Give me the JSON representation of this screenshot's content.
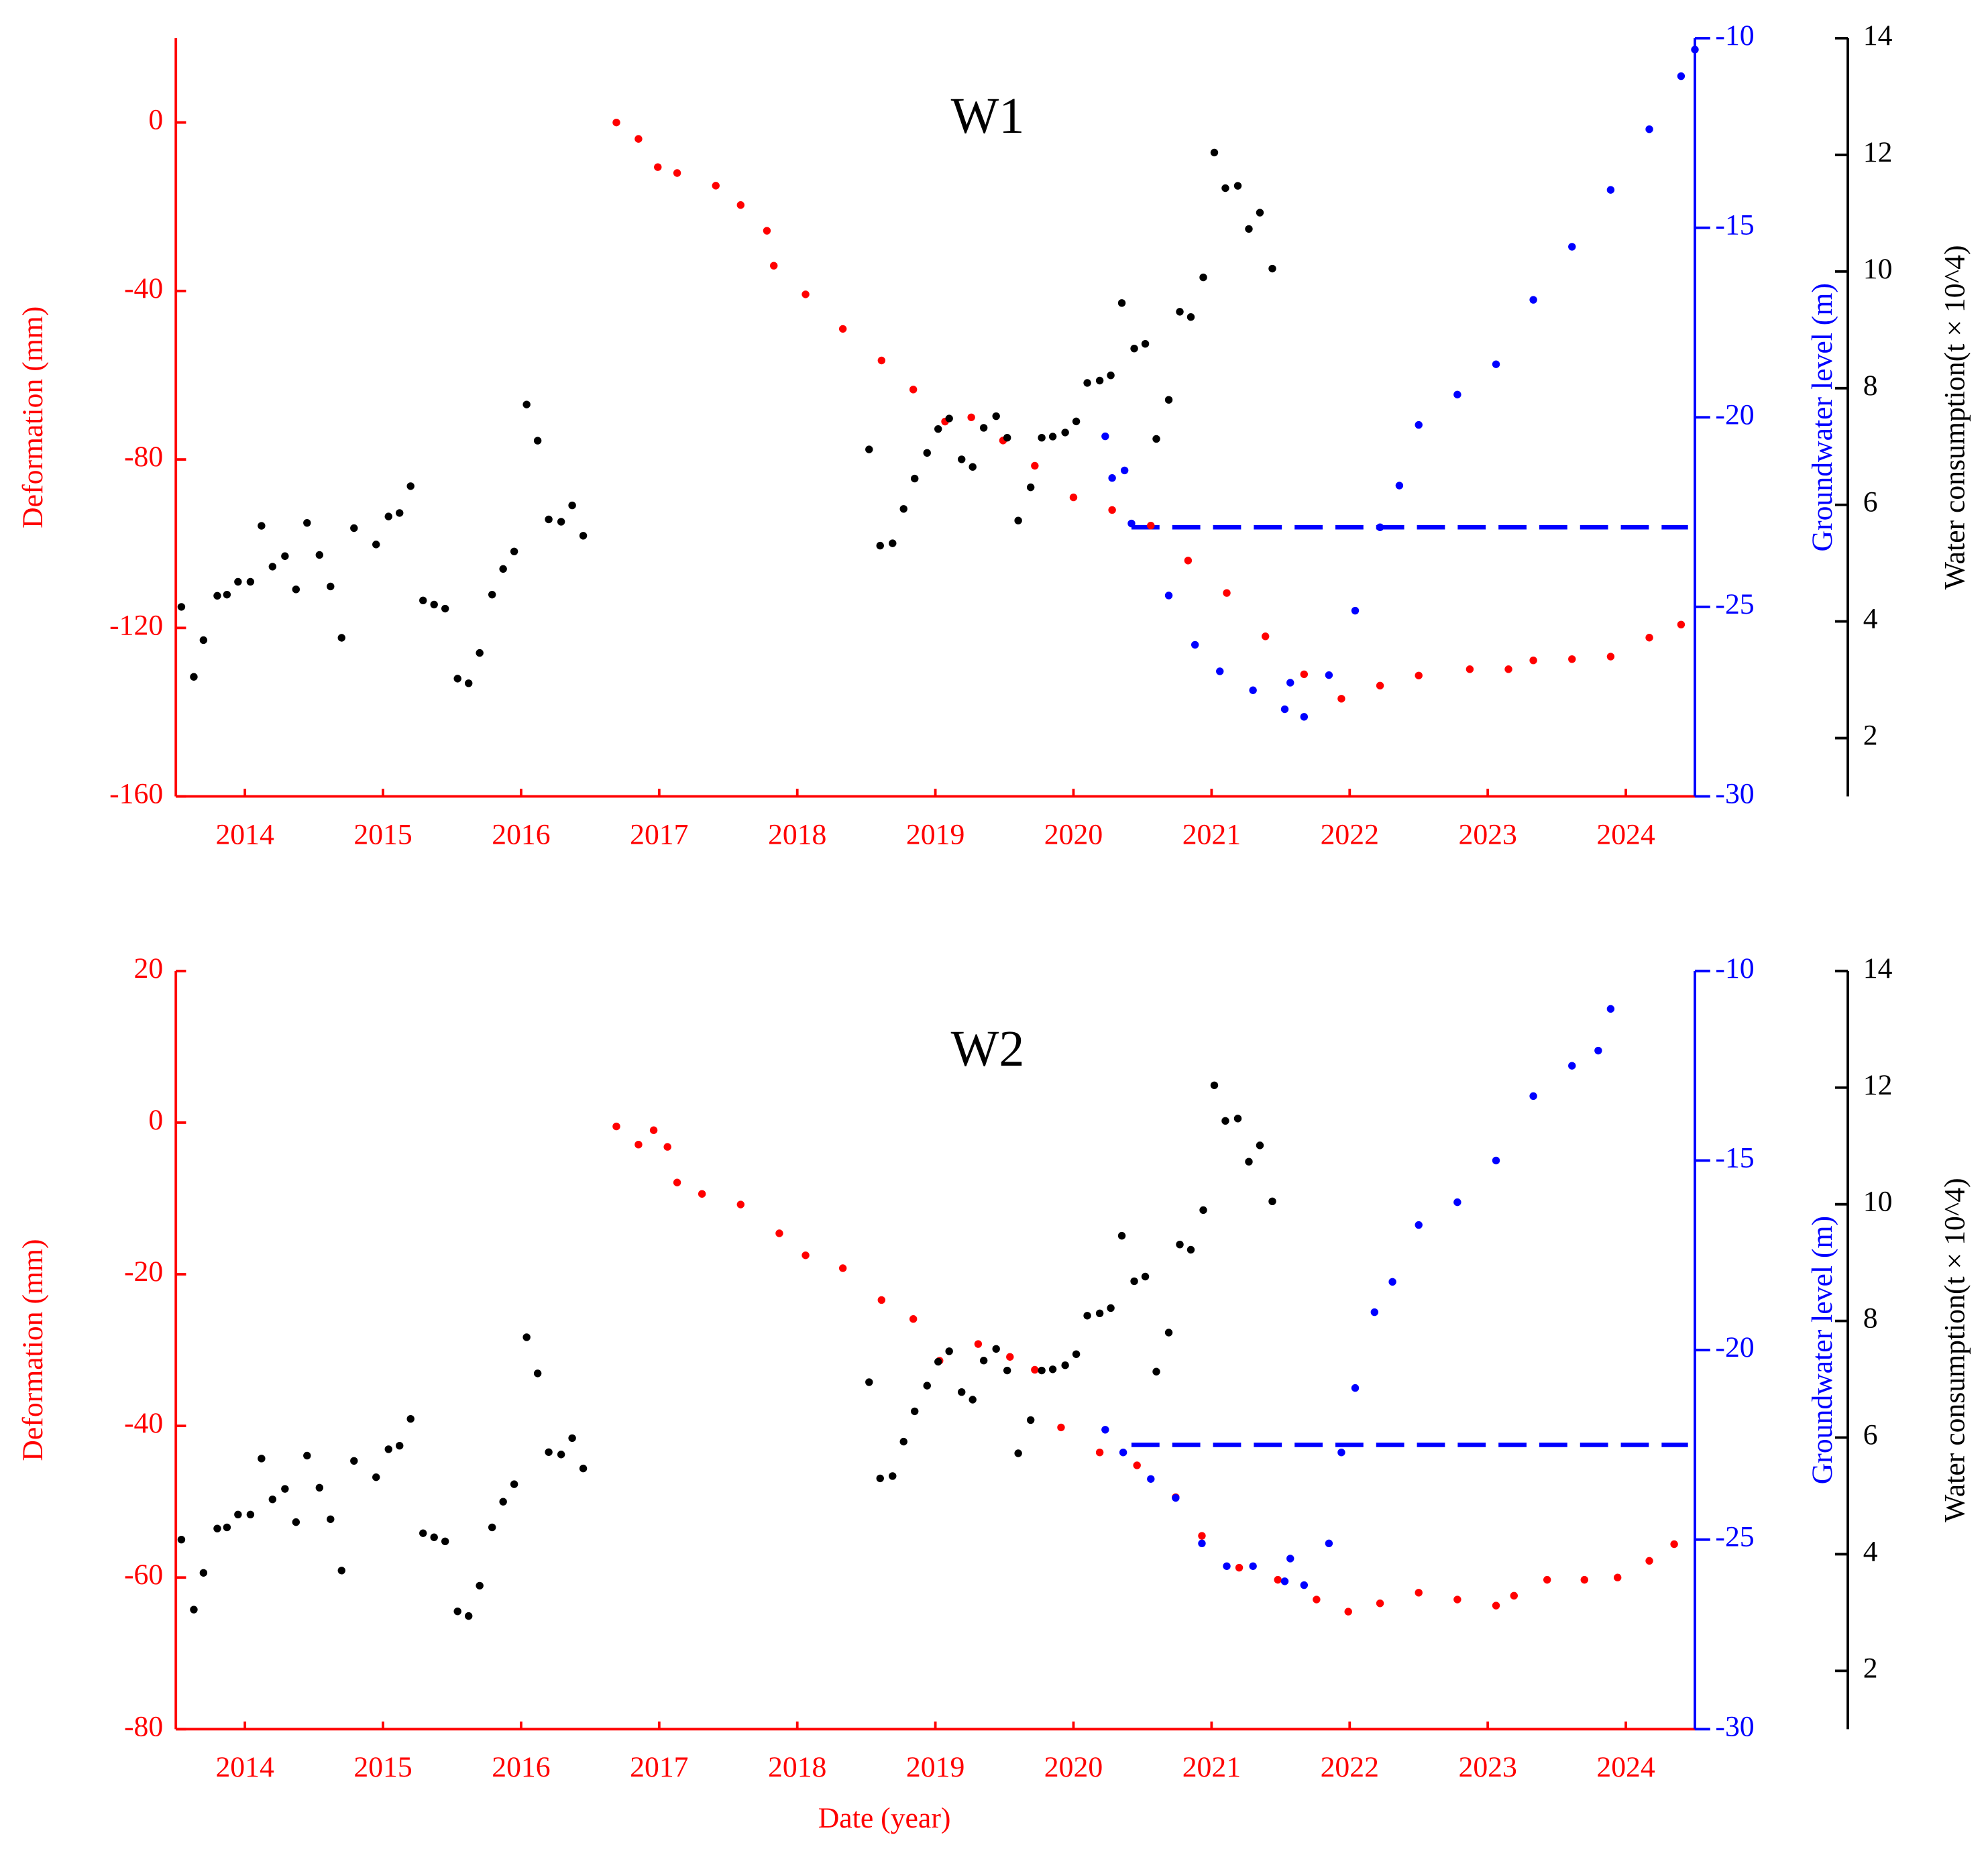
{
  "chart_data": [
    {
      "type": "scatter",
      "title": "W1",
      "ylabel": "Deformation (mm)",
      "y2label": "Groundwater level (m)",
      "y3label": "Water consumption(t × 10^4)",
      "xlim": [
        2014,
        2025
      ],
      "xticks": [
        {
          "value": 2014.5,
          "label": "2014"
        },
        {
          "value": 2015.5,
          "label": "2015"
        },
        {
          "value": 2016.5,
          "label": "2016"
        },
        {
          "value": 2017.5,
          "label": "2017"
        },
        {
          "value": 2018.5,
          "label": "2018"
        },
        {
          "value": 2019.5,
          "label": "2019"
        },
        {
          "value": 2020.5,
          "label": "2020"
        },
        {
          "value": 2021.5,
          "label": "2021"
        },
        {
          "value": 2022.5,
          "label": "2022"
        },
        {
          "value": 2023.5,
          "label": "2023"
        },
        {
          "value": 2024.5,
          "label": "2024"
        }
      ],
      "ylim": [
        -160,
        20
      ],
      "yticks": [
        -160,
        -120,
        -80,
        -40,
        0
      ],
      "y2lim": [
        -30,
        -10
      ],
      "y2ticks": [
        -30,
        -25,
        -20,
        -15,
        -10
      ],
      "y3lim": [
        1,
        14
      ],
      "y3ticks": [
        2,
        4,
        6,
        8,
        10,
        12,
        14
      ],
      "series": [
        {
          "color": "#ff0000",
          "axis": "y",
          "x": [
            2017.19,
            2017.35,
            2017.49,
            2017.63,
            2017.91,
            2018.09,
            2018.28,
            2018.33,
            2018.56,
            2018.83,
            2019.11,
            2019.34,
            2019.57,
            2019.76,
            2019.99,
            2020.22,
            2020.5,
            2020.78,
            2021.06,
            2021.33,
            2021.61,
            2021.89,
            2022.17,
            2022.44,
            2022.72,
            2023.0,
            2023.37,
            2023.65,
            2023.83,
            2024.11,
            2024.39,
            2024.67,
            2024.9
          ],
          "values": [
            0,
            -3.9,
            -10.6,
            -12,
            -15,
            -19.6,
            -25.7,
            -34,
            -40.8,
            -49,
            -56.5,
            -63.4,
            -71,
            -70,
            -75.5,
            -81.5,
            -89,
            -92,
            -95.7,
            -104,
            -111.7,
            -122,
            -131,
            -136.8,
            -133.7,
            -131.3,
            -129.8,
            -129.8,
            -127.7,
            -127.4,
            -126.8,
            -122.3,
            -119.2
          ]
        },
        {
          "color": "#0000ff",
          "axis": "y2",
          "x": [
            2020.73,
            2020.78,
            2020.87,
            2020.92,
            2021.19,
            2021.38,
            2021.56,
            2021.8,
            2022.03,
            2022.07,
            2022.17,
            2022.35,
            2022.54,
            2022.72,
            2022.86,
            2023.0,
            2023.28,
            2023.56,
            2023.83,
            2024.11,
            2024.39,
            2024.67,
            2024.9,
            2025.0
          ],
          "values": [
            -20.5,
            -21.6,
            -21.4,
            -22.8,
            -24.7,
            -26.0,
            -26.7,
            -27.2,
            -27.7,
            -27.0,
            -27.9,
            -26.8,
            -25.1,
            -22.9,
            -21.8,
            -20.2,
            -19.4,
            -18.6,
            -16.9,
            -15.5,
            -14.0,
            -12.4,
            -11.0,
            -10.3
          ]
        },
        {
          "color": "#000000",
          "axis": "y3",
          "x": [
            2014.04,
            2014.13,
            2014.2,
            2014.3,
            2014.37,
            2014.45,
            2014.54,
            2014.62,
            2014.7,
            2014.79,
            2014.87,
            2014.95,
            2015.04,
            2015.12,
            2015.2,
            2015.29,
            2015.45,
            2015.54,
            2015.62,
            2015.7,
            2015.79,
            2015.87,
            2015.95,
            2016.04,
            2016.12,
            2016.2,
            2016.29,
            2016.37,
            2016.45,
            2016.54,
            2016.62,
            2016.7,
            2016.79,
            2016.87,
            2016.95,
            2019.02,
            2019.1,
            2019.19,
            2019.27,
            2019.35,
            2019.44,
            2019.52,
            2019.6,
            2019.69,
            2019.77,
            2019.85,
            2019.94,
            2020.02,
            2020.1,
            2020.19,
            2020.27,
            2020.35,
            2020.44,
            2020.52,
            2020.6,
            2020.69,
            2020.77,
            2020.85,
            2020.94,
            2021.02,
            2021.1,
            2021.19,
            2021.27,
            2021.35,
            2021.44,
            2021.52,
            2021.6,
            2021.69,
            2021.77,
            2021.85,
            2021.94
          ],
          "values": [
            4.25,
            3.05,
            3.68,
            4.44,
            4.46,
            4.68,
            4.68,
            5.64,
            4.94,
            5.12,
            4.55,
            5.69,
            5.14,
            4.6,
            3.72,
            5.6,
            5.32,
            5.8,
            5.86,
            6.32,
            4.36,
            4.29,
            4.22,
            3.02,
            2.94,
            3.46,
            4.46,
            4.9,
            5.2,
            7.72,
            7.1,
            5.75,
            5.71,
            5.99,
            5.47,
            6.95,
            5.3,
            5.34,
            5.93,
            6.45,
            6.89,
            7.3,
            7.48,
            6.78,
            6.65,
            7.32,
            7.52,
            7.15,
            5.73,
            6.3,
            7.15,
            7.17,
            7.24,
            7.43,
            8.09,
            8.13,
            8.22,
            9.46,
            8.68,
            8.76,
            7.13,
            7.8,
            9.31,
            9.22,
            9.9,
            12.04,
            11.43,
            11.47,
            10.73,
            11.01,
            10.05
          ]
        }
      ],
      "reference_line": {
        "axis": "y2",
        "color": "#0000ff",
        "dashed": true,
        "y": -22.9,
        "x": [
          2020.92,
          2024.95
        ]
      }
    },
    {
      "type": "scatter",
      "title": "W2",
      "xlabel": "Date (year)",
      "ylabel": "Deformation (mm)",
      "y2label": "Groundwater level (m)",
      "y3label": "Water consumption(t × 10^4)",
      "xlim": [
        2014,
        2025
      ],
      "xticks": [
        {
          "value": 2014.5,
          "label": "2014"
        },
        {
          "value": 2015.5,
          "label": "2015"
        },
        {
          "value": 2016.5,
          "label": "2016"
        },
        {
          "value": 2017.5,
          "label": "2017"
        },
        {
          "value": 2018.5,
          "label": "2018"
        },
        {
          "value": 2019.5,
          "label": "2019"
        },
        {
          "value": 2020.5,
          "label": "2020"
        },
        {
          "value": 2021.5,
          "label": "2021"
        },
        {
          "value": 2022.5,
          "label": "2022"
        },
        {
          "value": 2023.5,
          "label": "2023"
        },
        {
          "value": 2024.5,
          "label": "2024"
        }
      ],
      "ylim": [
        -80,
        20
      ],
      "yticks": [
        -80,
        -60,
        -40,
        -20,
        0,
        20
      ],
      "y2lim": [
        -30,
        -10
      ],
      "y2ticks": [
        -30,
        -25,
        -20,
        -15,
        -10
      ],
      "y3lim": [
        1,
        14
      ],
      "y3ticks": [
        2,
        4,
        6,
        8,
        10,
        12,
        14
      ],
      "series": [
        {
          "color": "#ff0000",
          "axis": "y",
          "x": [
            2017.19,
            2017.35,
            2017.46,
            2017.56,
            2017.63,
            2017.81,
            2018.09,
            2018.37,
            2018.56,
            2018.83,
            2019.11,
            2019.34,
            2019.53,
            2019.81,
            2020.04,
            2020.22,
            2020.41,
            2020.69,
            2020.96,
            2021.24,
            2021.43,
            2021.7,
            2021.98,
            2022.26,
            2022.49,
            2022.72,
            2023.0,
            2023.28,
            2023.56,
            2023.69,
            2023.93,
            2024.2,
            2024.44,
            2024.67,
            2024.85
          ],
          "values": [
            -0.5,
            -2.9,
            -1,
            -3.2,
            -7.9,
            -9.4,
            -10.8,
            -14.6,
            -17.5,
            -19.2,
            -23.4,
            -25.9,
            -31.4,
            -29.2,
            -30.9,
            -32.6,
            -40.2,
            -43.5,
            -45.2,
            -49.4,
            -54.5,
            -58.7,
            -60.3,
            -62.9,
            -64.5,
            -63.4,
            -62,
            -62.9,
            -63.7,
            -62.4,
            -60.3,
            -60.3,
            -60,
            -57.8,
            -55.6
          ]
        },
        {
          "color": "#0000ff",
          "axis": "y2",
          "x": [
            2020.73,
            2020.86,
            2021.06,
            2021.24,
            2021.43,
            2021.61,
            2021.8,
            2022.03,
            2022.07,
            2022.17,
            2022.35,
            2022.44,
            2022.54,
            2022.68,
            2022.81,
            2023.0,
            2023.28,
            2023.56,
            2023.83,
            2024.11,
            2024.3,
            2024.39
          ],
          "values": [
            -22.1,
            -22.7,
            -23.4,
            -23.9,
            -25.1,
            -25.7,
            -25.7,
            -26.1,
            -25.5,
            -26.2,
            -25.1,
            -22.7,
            -21.0,
            -19.0,
            -18.2,
            -16.7,
            -16.1,
            -15.0,
            -13.3,
            -12.5,
            -12.1,
            -11.0
          ]
        },
        {
          "color": "#000000",
          "axis": "y3",
          "x": [
            2014.04,
            2014.13,
            2014.2,
            2014.3,
            2014.37,
            2014.45,
            2014.54,
            2014.62,
            2014.7,
            2014.79,
            2014.87,
            2014.95,
            2015.04,
            2015.12,
            2015.2,
            2015.29,
            2015.45,
            2015.54,
            2015.62,
            2015.7,
            2015.79,
            2015.87,
            2015.95,
            2016.04,
            2016.12,
            2016.2,
            2016.29,
            2016.37,
            2016.45,
            2016.54,
            2016.62,
            2016.7,
            2016.79,
            2016.87,
            2016.95,
            2019.02,
            2019.1,
            2019.19,
            2019.27,
            2019.35,
            2019.44,
            2019.52,
            2019.6,
            2019.69,
            2019.77,
            2019.85,
            2019.94,
            2020.02,
            2020.1,
            2020.19,
            2020.27,
            2020.35,
            2020.44,
            2020.52,
            2020.6,
            2020.69,
            2020.77,
            2020.85,
            2020.94,
            2021.02,
            2021.1,
            2021.19,
            2021.27,
            2021.35,
            2021.44,
            2021.52,
            2021.6,
            2021.69,
            2021.77,
            2021.85,
            2021.94
          ],
          "values": [
            4.25,
            3.05,
            3.68,
            4.44,
            4.46,
            4.68,
            4.68,
            5.64,
            4.94,
            5.12,
            4.55,
            5.69,
            5.14,
            4.6,
            3.72,
            5.6,
            5.32,
            5.8,
            5.86,
            6.32,
            4.36,
            4.29,
            4.22,
            3.02,
            2.94,
            3.46,
            4.46,
            4.9,
            5.2,
            7.72,
            7.1,
            5.75,
            5.71,
            5.99,
            5.47,
            6.95,
            5.3,
            5.34,
            5.93,
            6.45,
            6.89,
            7.3,
            7.48,
            6.78,
            6.65,
            7.32,
            7.52,
            7.15,
            5.73,
            6.3,
            7.15,
            7.17,
            7.24,
            7.43,
            8.09,
            8.13,
            8.22,
            9.46,
            8.68,
            8.76,
            7.13,
            7.8,
            9.31,
            9.22,
            9.9,
            12.04,
            11.43,
            11.47,
            10.73,
            11.01,
            10.05
          ]
        }
      ],
      "reference_line": {
        "axis": "y2",
        "color": "#0000ff",
        "dashed": true,
        "y": -22.5,
        "x": [
          2020.92,
          2024.95
        ]
      }
    }
  ]
}
